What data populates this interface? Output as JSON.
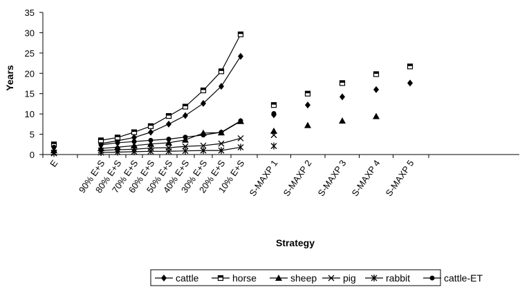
{
  "chart_data": {
    "type": "line",
    "ylabel": "Years",
    "xlabel": "Strategy",
    "ylim": [
      0,
      35
    ],
    "yticks": [
      0,
      5,
      10,
      15,
      20,
      25,
      30,
      35
    ],
    "categories": [
      "E",
      "90% E+S",
      "80% E+S",
      "70% E+S",
      "60% E+S",
      "50% E+S",
      "40% E+S",
      "30% E+S",
      "20% E+S",
      "10% E+S",
      "S-MAXP 1",
      "S-MAXP 2",
      "S-MAXP 3",
      "S-MAXP 4",
      "S-MAXP 5"
    ],
    "grid": false,
    "legend_position": "bottom",
    "series": [
      {
        "name": "cattle",
        "marker": "diamond",
        "values": [
          2.0,
          2.7,
          3.4,
          4.2,
          5.5,
          7.5,
          9.6,
          12.6,
          16.8,
          24.2,
          9.8,
          12.2,
          14.2,
          16.0,
          17.6
        ]
      },
      {
        "name": "horse",
        "marker": "square",
        "values": [
          2.5,
          3.5,
          4.2,
          5.5,
          7.0,
          9.5,
          11.8,
          15.8,
          20.5,
          29.6,
          12.2,
          15.0,
          17.6,
          19.8,
          21.7
        ]
      },
      {
        "name": "sheep",
        "marker": "triangle",
        "values": [
          1.0,
          1.5,
          1.8,
          2.2,
          2.6,
          2.9,
          3.6,
          5.3,
          5.4,
          8.2,
          5.8,
          7.2,
          8.3,
          9.4,
          null
        ]
      },
      {
        "name": "pig",
        "marker": "x",
        "values": [
          0.5,
          1.0,
          1.2,
          1.3,
          1.6,
          1.7,
          2.0,
          2.2,
          2.7,
          4.0,
          4.8,
          null,
          null,
          null,
          null
        ]
      },
      {
        "name": "rabbit",
        "marker": "asterisk",
        "values": [
          0.3,
          0.5,
          0.6,
          0.7,
          0.8,
          0.8,
          0.9,
          1.0,
          1.0,
          1.8,
          2.1,
          null,
          null,
          null,
          null
        ]
      },
      {
        "name": "cattle-ET",
        "marker": "circle",
        "values": [
          1.8,
          2.4,
          2.9,
          3.2,
          3.5,
          3.8,
          4.3,
          4.8,
          5.5,
          8.3,
          10.1,
          null,
          null,
          null,
          null
        ]
      }
    ],
    "line_groups": [
      [
        1,
        9
      ]
    ]
  }
}
